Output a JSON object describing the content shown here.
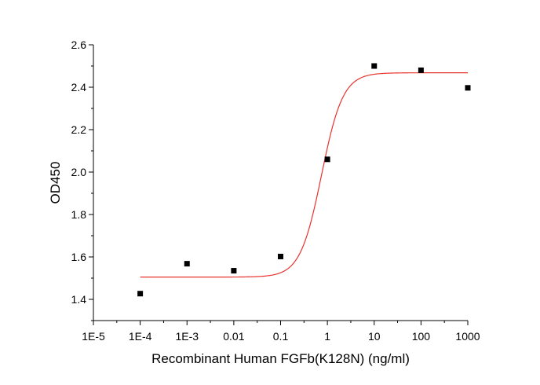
{
  "chart_data": {
    "type": "scatter",
    "xlabel": "Recombinant Human FGFb(K128N) (ng/ml)",
    "ylabel": "OD450",
    "x_scale": "log",
    "xlim": [
      1e-05,
      1000
    ],
    "ylim": [
      1.3,
      2.6
    ],
    "x_ticks": [
      {
        "value": 1e-05,
        "label": "1E-5"
      },
      {
        "value": 0.0001,
        "label": "1E-4"
      },
      {
        "value": 0.001,
        "label": "1E-3"
      },
      {
        "value": 0.01,
        "label": "0.01"
      },
      {
        "value": 0.1,
        "label": "0.1"
      },
      {
        "value": 1,
        "label": "1"
      },
      {
        "value": 10,
        "label": "10"
      },
      {
        "value": 100,
        "label": "100"
      },
      {
        "value": 1000,
        "label": "1000"
      }
    ],
    "y_ticks": [
      {
        "value": 1.4,
        "label": "1.4"
      },
      {
        "value": 1.6,
        "label": "1.6"
      },
      {
        "value": 1.8,
        "label": "1.8"
      },
      {
        "value": 2.0,
        "label": "2.0"
      },
      {
        "value": 2.2,
        "label": "2.2"
      },
      {
        "value": 2.4,
        "label": "2.4"
      },
      {
        "value": 2.6,
        "label": "2.6"
      }
    ],
    "grid": false,
    "series": [
      {
        "type": "scatter",
        "color": "#000000",
        "marker": "square",
        "x": [
          0.0001,
          0.001,
          0.01,
          0.1,
          1,
          10,
          100,
          1000
        ],
        "y": [
          1.427,
          1.568,
          1.535,
          1.602,
          2.06,
          2.5,
          2.48,
          2.397
        ]
      },
      {
        "type": "line",
        "color": "#e8332d",
        "fit": "four-parameter-logistic",
        "bottom": 1.505,
        "top": 2.468,
        "ec50": 0.75,
        "hill": 1.9
      }
    ]
  }
}
